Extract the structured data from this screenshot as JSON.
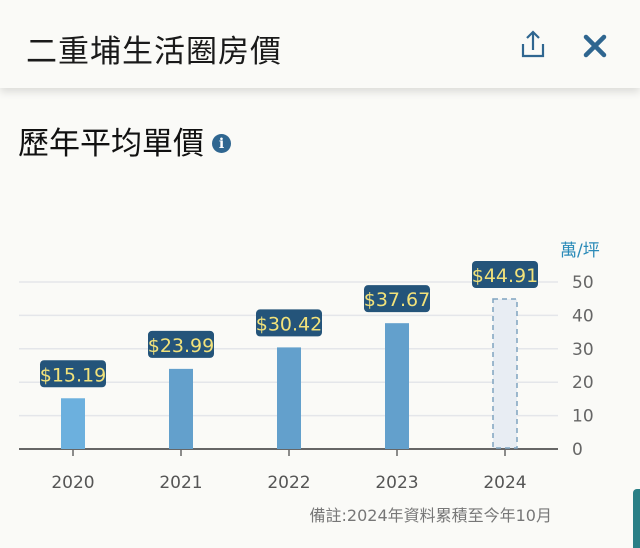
{
  "header": {
    "title": "二重埔生活圈房價",
    "share_icon": "share-icon",
    "close_icon": "close-icon"
  },
  "section": {
    "title": "歷年平均單價",
    "info_icon": "info-icon"
  },
  "chart_data": {
    "type": "bar",
    "categories": [
      "2020",
      "2021",
      "2022",
      "2023",
      "2024"
    ],
    "values": [
      15.19,
      23.99,
      30.42,
      37.67,
      44.91
    ],
    "data_labels": [
      "$15.19",
      "$23.99",
      "$30.42",
      "$37.67",
      "$44.91"
    ],
    "estimated": [
      false,
      false,
      false,
      false,
      true
    ],
    "ylabel": "萬/坪",
    "ylim": [
      0,
      50
    ],
    "yticks": [
      "0",
      "10",
      "20",
      "30",
      "40",
      "50"
    ],
    "y_axis_position": "right",
    "grid": true,
    "note": "備註:2024年資料累積至今年10月"
  },
  "colors": {
    "bar": "#67a3cf",
    "label_bg": "#24547a",
    "label_text": "#f2e27a",
    "axis_label": "#2a8ab8",
    "icon": "#2f6690"
  }
}
